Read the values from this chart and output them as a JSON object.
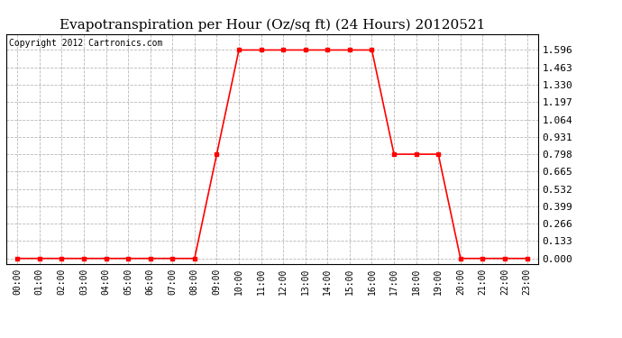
{
  "title": "Evapotranspiration per Hour (Oz/sq ft) (24 Hours) 20120521",
  "copyright_text": "Copyright 2012 Cartronics.com",
  "hours": [
    0,
    1,
    2,
    3,
    4,
    5,
    6,
    7,
    8,
    9,
    10,
    11,
    12,
    13,
    14,
    15,
    16,
    17,
    18,
    19,
    20,
    21,
    22,
    23
  ],
  "values": [
    0.0,
    0.0,
    0.0,
    0.0,
    0.0,
    0.0,
    0.0,
    0.0,
    0.0,
    0.798,
    1.596,
    1.596,
    1.596,
    1.596,
    1.596,
    1.596,
    1.596,
    0.798,
    0.798,
    0.798,
    0.0,
    0.0,
    0.0,
    0.0
  ],
  "line_color": "#ff0000",
  "marker": "s",
  "marker_size": 3,
  "bg_color": "#ffffff",
  "plot_bg_color": "#ffffff",
  "grid_color": "#b0b0b0",
  "yticks": [
    0.0,
    0.133,
    0.266,
    0.399,
    0.532,
    0.665,
    0.798,
    0.931,
    1.064,
    1.197,
    1.33,
    1.463,
    1.596
  ],
  "ylim": [
    -0.04,
    1.72
  ],
  "xlim": [
    -0.5,
    23.5
  ],
  "xlabel_fontsize": 7,
  "ylabel_fontsize": 8,
  "title_fontsize": 11,
  "copyright_fontsize": 7,
  "tick_label_color": "#000000",
  "border_color": "#000000",
  "linewidth": 1.2
}
